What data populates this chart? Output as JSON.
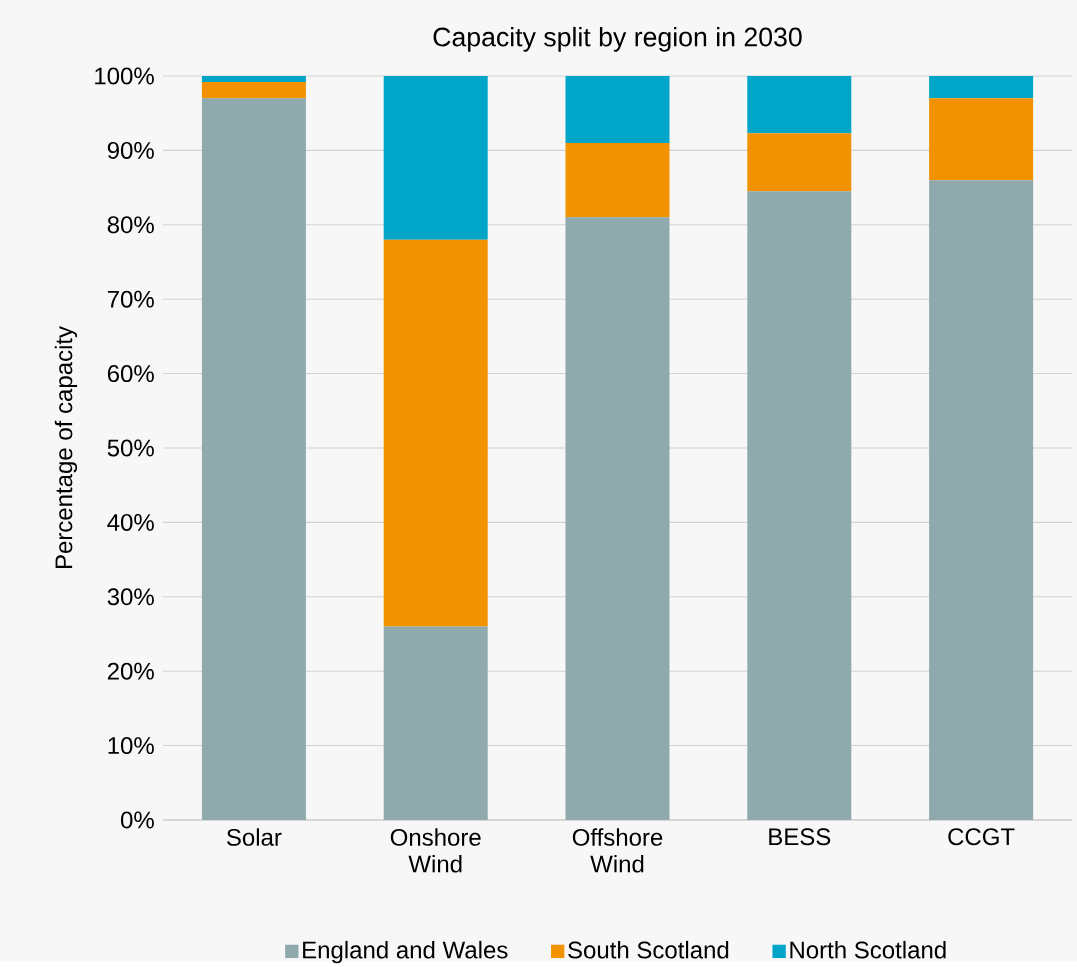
{
  "chart_data": {
    "type": "bar",
    "title": "Capacity split by region in 2030",
    "ylabel": "Percentage of capacity",
    "categories": [
      "Solar",
      "Onshore Wind",
      "Offshore Wind",
      "BESS",
      "CCGT"
    ],
    "stacked": true,
    "series": [
      {
        "name": "England and Wales",
        "color": "#8fa9ac",
        "values": [
          97,
          26,
          81,
          84.5,
          86
        ]
      },
      {
        "name": "South Scotland",
        "color": "#f39200",
        "values": [
          2.2,
          52,
          10,
          7.8,
          11
        ]
      },
      {
        "name": "North Scotland",
        "color": "#00a5c8",
        "values": [
          0.8,
          22,
          9,
          7.7,
          3
        ]
      }
    ],
    "ylim": [
      0,
      100
    ],
    "yticks": [
      {
        "value": 0,
        "label": "0%"
      },
      {
        "value": 10,
        "label": "10%"
      },
      {
        "value": 20,
        "label": "20%"
      },
      {
        "value": 30,
        "label": "30%"
      },
      {
        "value": 40,
        "label": "40%"
      },
      {
        "value": 50,
        "label": "50%"
      },
      {
        "value": 60,
        "label": "60%"
      },
      {
        "value": 70,
        "label": "70%"
      },
      {
        "value": 80,
        "label": "80%"
      },
      {
        "value": 90,
        "label": "90%"
      },
      {
        "value": 100,
        "label": "100%"
      }
    ],
    "grid": "y",
    "legend": "bottom"
  }
}
